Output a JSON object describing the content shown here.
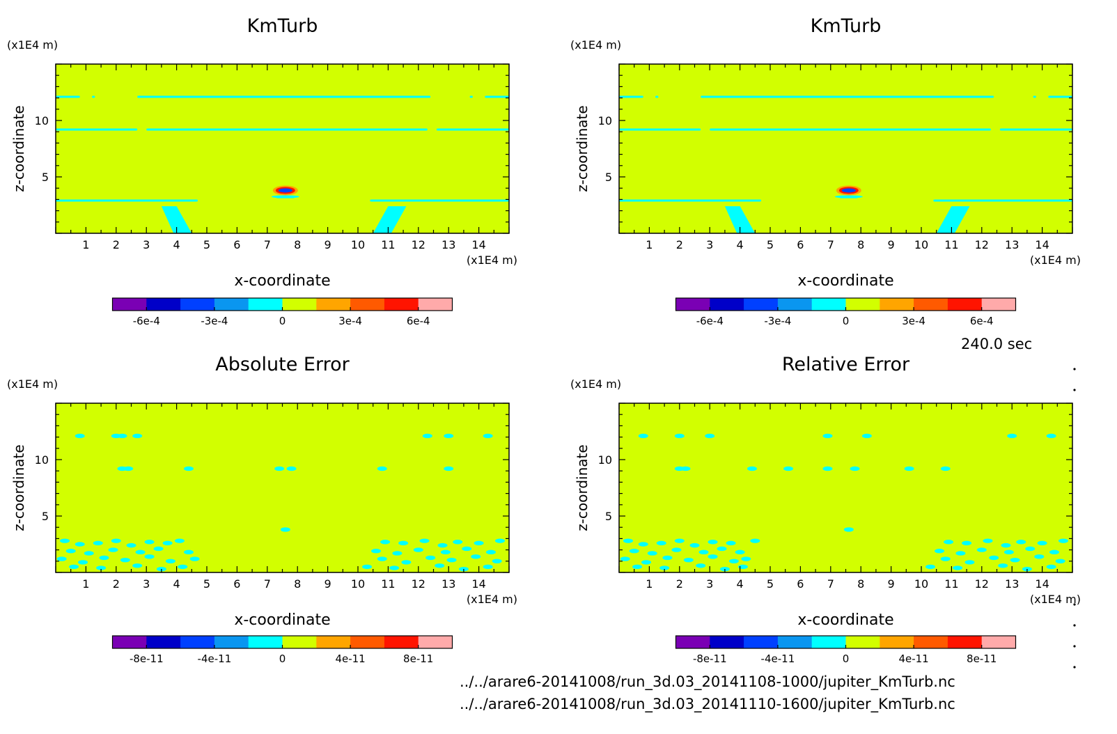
{
  "figure": {
    "timestamp": "240.0 sec",
    "file_paths": [
      "../../arare6-20141008/run_3d.03_20141108-1000/jupiter_KmTurb.nc",
      "../../arare6-20141008/run_3d.03_20141110-1600/jupiter_KmTurb.nc"
    ]
  },
  "chart_data": [
    {
      "type": "heatmap",
      "title": "KmTurb",
      "xlabel": "x-coordinate",
      "ylabel": "z-coordinate",
      "x_unit": "(x1E4 m)",
      "y_unit": "(x1E4 m)",
      "xlim": [
        0,
        15
      ],
      "ylim": [
        0,
        15
      ],
      "xticks": [
        "1",
        "2",
        "3",
        "4",
        "5",
        "6",
        "7",
        "8",
        "9",
        "10",
        "11",
        "12",
        "13",
        "14"
      ],
      "yticks": [
        "5",
        "10"
      ],
      "colorbar": {
        "levels": 10,
        "ticks": [
          "-6e-4",
          "-3e-4",
          "0",
          "3e-4",
          "6e-4"
        ],
        "colors": [
          "#7a00b4",
          "#0000c8",
          "#0040ff",
          "#0a96f0",
          "#00ffff",
          "#d2ff00",
          "#ffa500",
          "#ff5a00",
          "#ff1400",
          "#ffaaaa"
        ]
      },
      "field": {
        "background": "#d2ff00",
        "contour_color": "#00ffff",
        "bands": [
          {
            "z": 12.1,
            "segments": [
              [
                0,
                0.8
              ],
              [
                1.2,
                1.3
              ],
              [
                2.7,
                12.4
              ],
              [
                13.7,
                13.8
              ],
              [
                14.2,
                15
              ]
            ]
          },
          {
            "z": 9.2,
            "segments": [
              [
                0,
                2.7
              ],
              [
                3.0,
                12.3
              ],
              [
                12.6,
                15
              ]
            ]
          },
          {
            "z": 2.9,
            "segments": [
              [
                0,
                4.7
              ],
              [
                10.4,
                15
              ]
            ]
          },
          {
            "z": 3.2,
            "segments": [
              [
                7.3,
                7.9
              ]
            ]
          }
        ],
        "plumes": [
          {
            "base": [
              3.9,
              4.5
            ],
            "top": [
              3.5,
              4.0
            ],
            "z_top": 2.4
          },
          {
            "base": [
              10.5,
              11.1
            ],
            "top": [
              11.0,
              11.6
            ],
            "z_top": 2.4
          }
        ],
        "peak": {
          "x": 7.6,
          "z": 3.8
        }
      }
    },
    {
      "type": "heatmap",
      "title": "KmTurb",
      "xlabel": "x-coordinate",
      "ylabel": "z-coordinate",
      "x_unit": "(x1E4 m)",
      "y_unit": "(x1E4 m)",
      "xlim": [
        0,
        15
      ],
      "ylim": [
        0,
        15
      ],
      "xticks": [
        "1",
        "2",
        "3",
        "4",
        "5",
        "6",
        "7",
        "8",
        "9",
        "10",
        "11",
        "12",
        "13",
        "14"
      ],
      "yticks": [
        "5",
        "10"
      ],
      "colorbar": {
        "levels": 10,
        "ticks": [
          "-6e-4",
          "-3e-4",
          "0",
          "3e-4",
          "6e-4"
        ],
        "colors": [
          "#7a00b4",
          "#0000c8",
          "#0040ff",
          "#0a96f0",
          "#00ffff",
          "#d2ff00",
          "#ffa500",
          "#ff5a00",
          "#ff1400",
          "#ffaaaa"
        ]
      },
      "field": {
        "background": "#d2ff00",
        "contour_color": "#00ffff",
        "bands": [
          {
            "z": 12.1,
            "segments": [
              [
                0,
                0.8
              ],
              [
                1.2,
                1.3
              ],
              [
                2.7,
                12.4
              ],
              [
                13.7,
                13.8
              ],
              [
                14.2,
                15
              ]
            ]
          },
          {
            "z": 9.2,
            "segments": [
              [
                0,
                2.7
              ],
              [
                3.0,
                12.3
              ],
              [
                12.6,
                15
              ]
            ]
          },
          {
            "z": 2.9,
            "segments": [
              [
                0,
                4.7
              ],
              [
                10.4,
                15
              ]
            ]
          },
          {
            "z": 3.2,
            "segments": [
              [
                7.3,
                7.9
              ]
            ]
          }
        ],
        "plumes": [
          {
            "base": [
              3.9,
              4.5
            ],
            "top": [
              3.5,
              4.0
            ],
            "z_top": 2.4
          },
          {
            "base": [
              10.5,
              11.1
            ],
            "top": [
              11.0,
              11.6
            ],
            "z_top": 2.4
          }
        ],
        "peak": {
          "x": 7.6,
          "z": 3.8
        }
      }
    },
    {
      "type": "heatmap",
      "title": "Absolute Error",
      "xlabel": "x-coordinate",
      "ylabel": "z-coordinate",
      "x_unit": "(x1E4 m)",
      "y_unit": "(x1E4 m)",
      "xlim": [
        0,
        15
      ],
      "ylim": [
        0,
        15
      ],
      "xticks": [
        "1",
        "2",
        "3",
        "4",
        "5",
        "6",
        "7",
        "8",
        "9",
        "10",
        "11",
        "12",
        "13",
        "14"
      ],
      "yticks": [
        "5",
        "10"
      ],
      "colorbar": {
        "levels": 10,
        "ticks": [
          "-8e-11",
          "-4e-11",
          "0",
          "4e-11",
          "8e-11"
        ],
        "colors": [
          "#7a00b4",
          "#0000c8",
          "#0040ff",
          "#0a96f0",
          "#00ffff",
          "#d2ff00",
          "#ffa500",
          "#ff5a00",
          "#ff1400",
          "#ffaaaa"
        ]
      },
      "field": {
        "background": "#d2ff00",
        "contour_color": "#00ffff",
        "spots": [
          [
            0.8,
            12.1
          ],
          [
            2.0,
            12.1
          ],
          [
            2.2,
            12.1
          ],
          [
            2.7,
            12.1
          ],
          [
            12.3,
            12.1
          ],
          [
            13.0,
            12.1
          ],
          [
            14.3,
            12.1
          ],
          [
            2.2,
            9.2
          ],
          [
            2.4,
            9.2
          ],
          [
            4.4,
            9.2
          ],
          [
            7.4,
            9.2
          ],
          [
            7.8,
            9.2
          ],
          [
            10.8,
            9.2
          ],
          [
            13.0,
            9.2
          ],
          [
            7.6,
            3.8
          ],
          [
            0.3,
            2.8
          ],
          [
            0.8,
            2.5
          ],
          [
            1.4,
            2.6
          ],
          [
            2.0,
            2.8
          ],
          [
            2.5,
            2.4
          ],
          [
            3.1,
            2.7
          ],
          [
            3.7,
            2.6
          ],
          [
            4.1,
            2.8
          ],
          [
            0.5,
            1.9
          ],
          [
            1.1,
            1.7
          ],
          [
            1.9,
            2.0
          ],
          [
            2.8,
            1.8
          ],
          [
            3.4,
            2.1
          ],
          [
            4.4,
            1.8
          ],
          [
            0.2,
            1.2
          ],
          [
            0.9,
            0.9
          ],
          [
            1.6,
            1.3
          ],
          [
            2.3,
            1.1
          ],
          [
            3.1,
            1.4
          ],
          [
            3.8,
            1.0
          ],
          [
            4.6,
            1.2
          ],
          [
            0.6,
            0.5
          ],
          [
            1.5,
            0.4
          ],
          [
            2.7,
            0.6
          ],
          [
            3.5,
            0.3
          ],
          [
            4.2,
            0.5
          ],
          [
            10.9,
            2.7
          ],
          [
            11.5,
            2.6
          ],
          [
            12.2,
            2.8
          ],
          [
            12.8,
            2.4
          ],
          [
            13.3,
            2.7
          ],
          [
            14.0,
            2.6
          ],
          [
            14.7,
            2.8
          ],
          [
            10.6,
            1.9
          ],
          [
            11.3,
            1.7
          ],
          [
            12.0,
            2.0
          ],
          [
            12.9,
            1.8
          ],
          [
            13.6,
            2.1
          ],
          [
            14.4,
            1.8
          ],
          [
            10.8,
            1.2
          ],
          [
            11.6,
            0.9
          ],
          [
            12.4,
            1.3
          ],
          [
            13.1,
            1.1
          ],
          [
            13.9,
            1.4
          ],
          [
            14.6,
            1.0
          ],
          [
            10.3,
            0.5
          ],
          [
            11.2,
            0.4
          ],
          [
            12.7,
            0.6
          ],
          [
            13.5,
            0.3
          ],
          [
            14.3,
            0.5
          ]
        ]
      }
    },
    {
      "type": "heatmap",
      "title": "Relative Error",
      "xlabel": "x-coordinate",
      "ylabel": "z-coordinate",
      "x_unit": "(x1E4 m)",
      "y_unit": "(x1E4 m)",
      "xlim": [
        0,
        15
      ],
      "ylim": [
        0,
        15
      ],
      "xticks": [
        "1",
        "2",
        "3",
        "4",
        "5",
        "6",
        "7",
        "8",
        "9",
        "10",
        "11",
        "12",
        "13",
        "14"
      ],
      "yticks": [
        "5",
        "10"
      ],
      "colorbar": {
        "levels": 10,
        "ticks": [
          "-8e-11",
          "-4e-11",
          "0",
          "4e-11",
          "8e-11"
        ],
        "colors": [
          "#7a00b4",
          "#0000c8",
          "#0040ff",
          "#0a96f0",
          "#00ffff",
          "#d2ff00",
          "#ffa500",
          "#ff5a00",
          "#ff1400",
          "#ffaaaa"
        ]
      },
      "field": {
        "background": "#d2ff00",
        "contour_color": "#00ffff",
        "spots": [
          [
            0.8,
            12.1
          ],
          [
            2.0,
            12.1
          ],
          [
            3.0,
            12.1
          ],
          [
            6.9,
            12.1
          ],
          [
            8.2,
            12.1
          ],
          [
            13.0,
            12.1
          ],
          [
            14.3,
            12.1
          ],
          [
            2.0,
            9.2
          ],
          [
            2.2,
            9.2
          ],
          [
            4.4,
            9.2
          ],
          [
            5.6,
            9.2
          ],
          [
            6.9,
            9.2
          ],
          [
            7.8,
            9.2
          ],
          [
            9.6,
            9.2
          ],
          [
            10.8,
            9.2
          ],
          [
            7.6,
            3.8
          ],
          [
            0.3,
            2.8
          ],
          [
            0.8,
            2.5
          ],
          [
            1.4,
            2.6
          ],
          [
            2.0,
            2.8
          ],
          [
            2.5,
            2.4
          ],
          [
            3.1,
            2.7
          ],
          [
            3.7,
            2.6
          ],
          [
            4.5,
            2.8
          ],
          [
            0.5,
            1.9
          ],
          [
            1.1,
            1.7
          ],
          [
            1.9,
            2.0
          ],
          [
            2.8,
            1.8
          ],
          [
            3.4,
            2.1
          ],
          [
            4.0,
            1.8
          ],
          [
            0.2,
            1.2
          ],
          [
            0.9,
            0.9
          ],
          [
            1.6,
            1.3
          ],
          [
            2.3,
            1.1
          ],
          [
            3.1,
            1.4
          ],
          [
            3.8,
            1.0
          ],
          [
            4.2,
            1.2
          ],
          [
            0.6,
            0.5
          ],
          [
            1.5,
            0.4
          ],
          [
            2.7,
            0.6
          ],
          [
            3.5,
            0.3
          ],
          [
            4.1,
            0.5
          ],
          [
            10.9,
            2.7
          ],
          [
            11.5,
            2.6
          ],
          [
            12.2,
            2.8
          ],
          [
            12.8,
            2.4
          ],
          [
            13.3,
            2.7
          ],
          [
            14.0,
            2.6
          ],
          [
            14.7,
            2.8
          ],
          [
            10.6,
            1.9
          ],
          [
            11.3,
            1.7
          ],
          [
            12.0,
            2.0
          ],
          [
            12.9,
            1.8
          ],
          [
            13.6,
            2.1
          ],
          [
            14.4,
            1.8
          ],
          [
            10.8,
            1.2
          ],
          [
            11.6,
            0.9
          ],
          [
            12.4,
            1.3
          ],
          [
            13.1,
            1.1
          ],
          [
            13.9,
            1.4
          ],
          [
            14.6,
            1.0
          ],
          [
            10.3,
            0.5
          ],
          [
            11.2,
            0.4
          ],
          [
            12.7,
            0.6
          ],
          [
            13.5,
            0.3
          ],
          [
            14.3,
            0.5
          ]
        ]
      }
    }
  ]
}
